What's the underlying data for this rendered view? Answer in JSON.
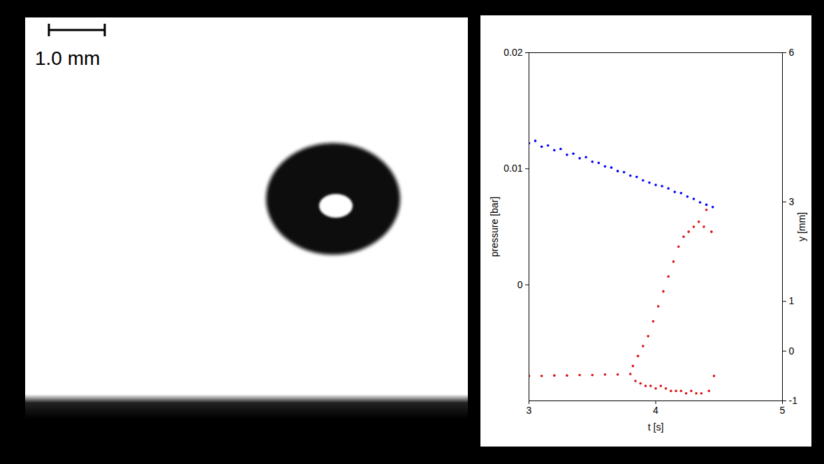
{
  "image": {
    "scale_bar": "1.0 mm"
  },
  "chart_data": {
    "type": "scatter",
    "xlabel": "t [s]",
    "ylabel": "pressure [bar]",
    "y2label": "y [mm]",
    "xlim": [
      3,
      5
    ],
    "xticks": [
      3,
      4,
      5
    ],
    "ylim": [
      -0.01,
      0.02
    ],
    "yticks": [
      0,
      0.01,
      0.02
    ],
    "y2lim": [
      -1,
      6
    ],
    "y2ticks": [
      -1,
      0,
      1,
      3,
      6
    ],
    "grid": false,
    "series": [
      {
        "color": "#0000ff",
        "marker": "dot",
        "x": [
          3.0,
          3.05,
          3.1,
          3.15,
          3.2,
          3.25,
          3.3,
          3.35,
          3.4,
          3.45,
          3.5,
          3.55,
          3.6,
          3.65,
          3.7,
          3.75,
          3.8,
          3.85,
          3.9,
          3.95,
          4.0,
          4.05,
          4.1,
          4.15,
          4.2,
          4.25,
          4.3,
          4.35,
          4.4,
          4.45
        ],
        "values": [
          0.0122,
          0.0124,
          0.0119,
          0.012,
          0.0116,
          0.0117,
          0.0112,
          0.0113,
          0.0109,
          0.011,
          0.0106,
          0.0105,
          0.0102,
          0.0101,
          0.0098,
          0.0097,
          0.0094,
          0.0093,
          0.009,
          0.0088,
          0.0086,
          0.0085,
          0.0083,
          0.008,
          0.0079,
          0.0076,
          0.0074,
          0.0071,
          0.0069,
          0.0067
        ]
      },
      {
        "color": "#dd1111",
        "marker": "dot",
        "axis": "y2",
        "x": [
          3.0,
          3.1,
          3.2,
          3.3,
          3.4,
          3.5,
          3.6,
          3.7,
          3.8,
          3.82,
          3.84,
          3.86,
          3.88,
          3.9,
          3.92,
          3.94,
          3.96,
          3.98,
          4.0,
          4.02,
          4.04,
          4.06,
          4.08,
          4.1,
          4.12,
          4.14,
          4.16,
          4.18,
          4.2,
          4.22,
          4.24,
          4.26,
          4.28,
          4.3,
          4.32,
          4.34,
          4.36,
          4.38,
          4.4,
          4.42,
          4.44,
          4.46
        ],
        "values": [
          -0.5,
          -0.5,
          -0.49,
          -0.49,
          -0.48,
          -0.48,
          -0.47,
          -0.47,
          -0.46,
          -0.3,
          -0.6,
          -0.1,
          -0.65,
          0.1,
          -0.7,
          0.3,
          -0.7,
          0.6,
          -0.75,
          0.9,
          -0.7,
          1.2,
          -0.75,
          1.5,
          -0.8,
          1.8,
          -0.8,
          2.1,
          -0.8,
          2.3,
          -0.85,
          2.4,
          -0.8,
          2.5,
          -0.85,
          2.6,
          -0.85,
          2.5,
          2.84,
          -0.8,
          2.4,
          -0.5
        ]
      }
    ]
  }
}
